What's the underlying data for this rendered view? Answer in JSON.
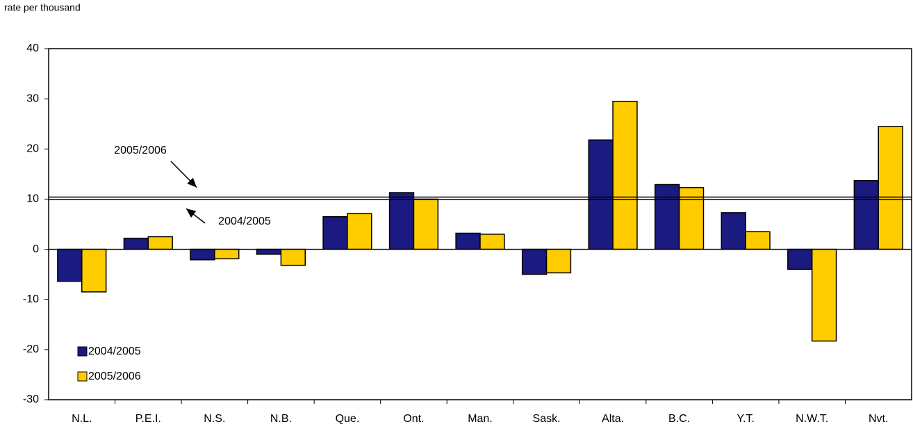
{
  "chart_data": {
    "type": "bar",
    "y_label": "rate per thousand",
    "categories": [
      "N.L.",
      "P.E.I.",
      "N.S.",
      "N.B.",
      "Que.",
      "Ont.",
      "Man.",
      "Sask.",
      "Alta.",
      "B.C.",
      "Y.T.",
      "N.W.T.",
      "Nvt."
    ],
    "series": [
      {
        "name": "2004/2005",
        "color": "#1a1a80",
        "values": [
          -6.4,
          2.2,
          -2.1,
          -1.0,
          6.5,
          11.3,
          3.2,
          -5.0,
          21.8,
          12.9,
          7.3,
          -4.0,
          13.7
        ]
      },
      {
        "name": "2005/2006",
        "color": "#ffcc00",
        "values": [
          -8.5,
          2.5,
          -1.9,
          -3.2,
          7.1,
          10.0,
          3.0,
          -4.7,
          29.5,
          12.3,
          3.5,
          -18.3,
          24.5
        ]
      }
    ],
    "reference_lines": [
      {
        "label": "2005/2006",
        "value": 10.4
      },
      {
        "label": "2004/2005",
        "value": 9.9
      }
    ],
    "ylim": [
      -30,
      40
    ],
    "yticks": [
      -30,
      -20,
      -10,
      0,
      10,
      20,
      30,
      40
    ],
    "legend": "lower-left"
  }
}
